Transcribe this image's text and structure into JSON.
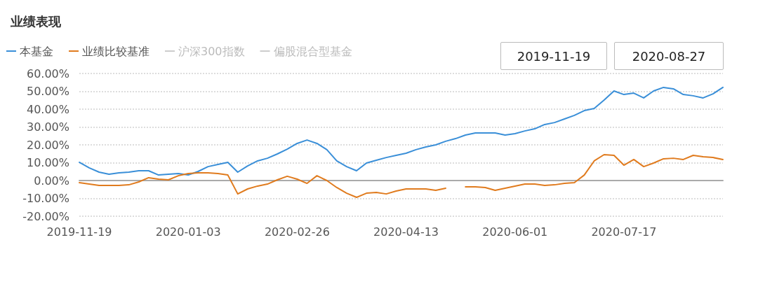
{
  "chart_data": {
    "type": "line",
    "title": "业绩表现",
    "annotations": [
      "2019-11-19",
      "2020-08-27"
    ],
    "categories": [
      "2019-11-19",
      null,
      null,
      null,
      null,
      null,
      null,
      null,
      null,
      null,
      null,
      "2020-01-03",
      null,
      null,
      null,
      null,
      null,
      null,
      null,
      null,
      null,
      null,
      "2020-02-26",
      null,
      null,
      null,
      null,
      null,
      null,
      null,
      null,
      null,
      null,
      "2020-04-13",
      null,
      null,
      null,
      null,
      null,
      null,
      null,
      null,
      null,
      null,
      "2020-06-01",
      null,
      null,
      null,
      null,
      null,
      null,
      null,
      null,
      null,
      null,
      "2020-07-17",
      null,
      null,
      null,
      null,
      null,
      null,
      null,
      null,
      null,
      null
    ],
    "series": [
      {
        "name": "本基金",
        "color": "#3a8fd8",
        "values": [
          10.2,
          7.1,
          4.7,
          3.5,
          4.3,
          4.7,
          5.5,
          5.5,
          3.1,
          3.5,
          3.9,
          3.1,
          5.1,
          7.8,
          9,
          10.2,
          4.7,
          8.2,
          11,
          12.5,
          14.9,
          17.6,
          20.8,
          22.7,
          20.8,
          17.3,
          11,
          7.8,
          5.5,
          9.8,
          11.4,
          12.9,
          14.1,
          15.3,
          17.3,
          18.8,
          20,
          22,
          23.5,
          25.5,
          26.7,
          26.7,
          26.7,
          25.5,
          26.3,
          27.8,
          29,
          31.4,
          32.5,
          34.5,
          36.5,
          39.2,
          40.4,
          45.1,
          50.2,
          48.2,
          49,
          46.3,
          50.2,
          52.2,
          51.4,
          48.2,
          47.5,
          46.3,
          48.6,
          52.2
        ]
      },
      {
        "name": "业绩比较基准",
        "color": "#e07b1e",
        "values": [
          -1.2,
          -2,
          -2.7,
          -2.7,
          -2.7,
          -2.4,
          -0.8,
          1.6,
          0.8,
          0.4,
          2.7,
          3.9,
          4.3,
          4.3,
          3.9,
          3.1,
          -7.5,
          -4.7,
          -3.1,
          -2,
          0.4,
          2.4,
          0.8,
          -1.6,
          2.7,
          0,
          -3.9,
          -7.1,
          -9.4,
          -7.1,
          -6.7,
          -7.5,
          -5.9,
          -4.7,
          -4.7,
          -4.7,
          -5.5,
          -4.3,
          null,
          -3.5,
          -3.5,
          -3.9,
          -5.5,
          -4.3,
          -3.1,
          -2,
          -2,
          -2.7,
          -2.4,
          -1.6,
          -1.2,
          3.1,
          11,
          14.5,
          14.1,
          8.6,
          11.8,
          7.8,
          9.8,
          12.2,
          12.5,
          11.8,
          14.1,
          13.3,
          12.9,
          11.8
        ]
      },
      {
        "name": "沪深300指数",
        "color": "#cccccc",
        "values": [
          null,
          null,
          null,
          null,
          null,
          null,
          null,
          null,
          null,
          null,
          null,
          null,
          null,
          null,
          null,
          null,
          null,
          null,
          null,
          null,
          null,
          null,
          null,
          null,
          null,
          null,
          null,
          null,
          null,
          null,
          null,
          null,
          null,
          null,
          null,
          null,
          null,
          null,
          null,
          null,
          null,
          null,
          null,
          null,
          null,
          null,
          null,
          null,
          null,
          null,
          null,
          null,
          null,
          null,
          null,
          null,
          null,
          null,
          null,
          null,
          null,
          null,
          null,
          null,
          null,
          null
        ]
      },
      {
        "name": "偏股混合型基金",
        "color": "#cccccc",
        "values": [
          null,
          null,
          null,
          null,
          null,
          null,
          null,
          null,
          null,
          null,
          null,
          null,
          null,
          null,
          null,
          null,
          null,
          null,
          null,
          null,
          null,
          null,
          null,
          null,
          null,
          null,
          null,
          null,
          null,
          null,
          null,
          null,
          null,
          null,
          null,
          null,
          null,
          null,
          null,
          null,
          null,
          null,
          null,
          null,
          null,
          null,
          null,
          null,
          null,
          null,
          null,
          null,
          null,
          null,
          null,
          null,
          null,
          null,
          null,
          null,
          null,
          null,
          null,
          null,
          null,
          null
        ]
      }
    ],
    "ylim": [
      -20,
      60
    ],
    "yticks": [
      {
        "value": -20,
        "label": "-20.00%"
      },
      {
        "value": -10,
        "label": "-10.00%"
      },
      {
        "value": 0,
        "label": "0.00%"
      },
      {
        "value": 10,
        "label": "10.00%"
      },
      {
        "value": 20,
        "label": "20.00%"
      },
      {
        "value": 30,
        "label": "30.00%"
      },
      {
        "value": 40,
        "label": "40.00%"
      },
      {
        "value": 50,
        "label": "50.00%"
      },
      {
        "value": 60,
        "label": "60.00%"
      }
    ],
    "grid": "y",
    "legend": "top left",
    "marker": "none",
    "line_style": "solid"
  }
}
